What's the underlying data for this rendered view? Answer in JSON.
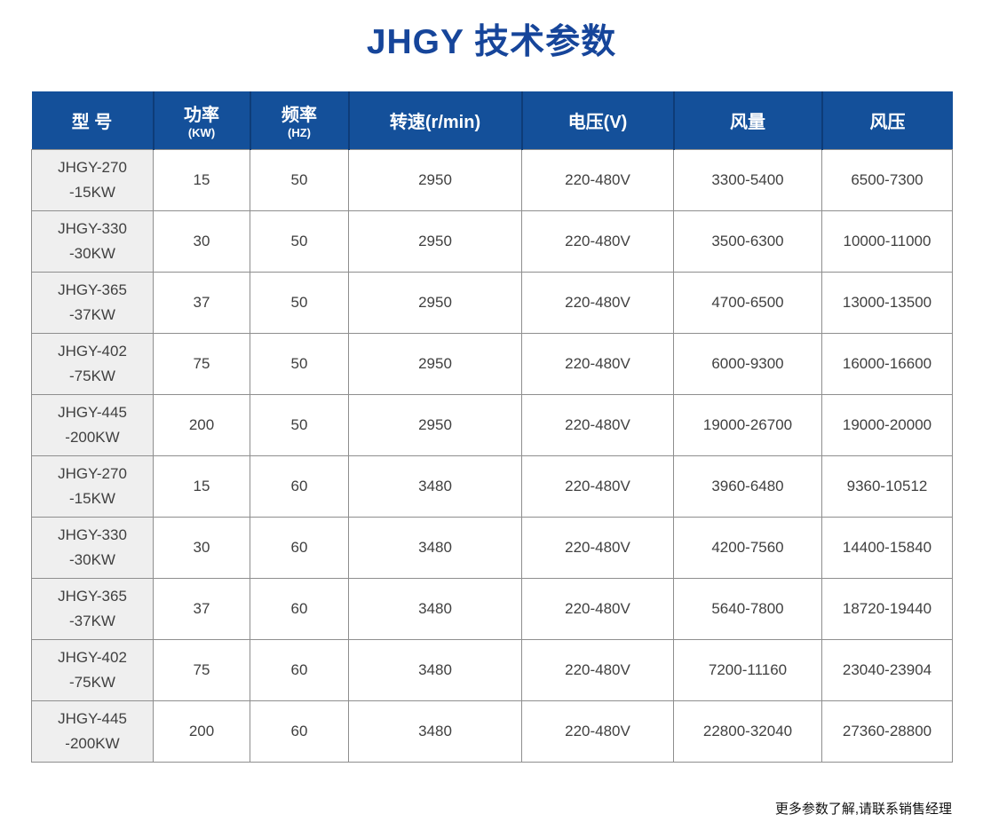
{
  "page": {
    "title": "JHGY 技术参数",
    "footer_note": "更多参数了解,请联系销售经理"
  },
  "colors": {
    "title_text": "#16459A",
    "header_bg": "#14509A",
    "header_divider": "#0E3C78",
    "model_cell_bg": "#EFEFEF",
    "grid_border": "#8E8E8E",
    "cell_text": "#404040"
  },
  "table": {
    "columns": [
      {
        "label": "型 号",
        "sub": ""
      },
      {
        "label": "功率",
        "sub": "(KW)"
      },
      {
        "label": "频率",
        "sub": "(HZ)"
      },
      {
        "label": "转速(r/min)",
        "sub": ""
      },
      {
        "label": "电压(V)",
        "sub": ""
      },
      {
        "label": "风量",
        "sub": ""
      },
      {
        "label": "风压",
        "sub": ""
      }
    ],
    "rows": [
      {
        "model_line1": "JHGY-270",
        "model_line2": "-15KW",
        "power_kw": "15",
        "frequency_hz": "50",
        "speed_rpm": "2950",
        "voltage": "220-480V",
        "air_volume": "3300-5400",
        "air_pressure": "6500-7300"
      },
      {
        "model_line1": "JHGY-330",
        "model_line2": "-30KW",
        "power_kw": "30",
        "frequency_hz": "50",
        "speed_rpm": "2950",
        "voltage": "220-480V",
        "air_volume": "3500-6300",
        "air_pressure": "10000-11000"
      },
      {
        "model_line1": "JHGY-365",
        "model_line2": "-37KW",
        "power_kw": "37",
        "frequency_hz": "50",
        "speed_rpm": "2950",
        "voltage": "220-480V",
        "air_volume": "4700-6500",
        "air_pressure": "13000-13500"
      },
      {
        "model_line1": "JHGY-402",
        "model_line2": "-75KW",
        "power_kw": "75",
        "frequency_hz": "50",
        "speed_rpm": "2950",
        "voltage": "220-480V",
        "air_volume": "6000-9300",
        "air_pressure": "16000-16600"
      },
      {
        "model_line1": "JHGY-445",
        "model_line2": "-200KW",
        "power_kw": "200",
        "frequency_hz": "50",
        "speed_rpm": "2950",
        "voltage": "220-480V",
        "air_volume": "19000-26700",
        "air_pressure": "19000-20000"
      },
      {
        "model_line1": "JHGY-270",
        "model_line2": "-15KW",
        "power_kw": "15",
        "frequency_hz": "60",
        "speed_rpm": "3480",
        "voltage": "220-480V",
        "air_volume": "3960-6480",
        "air_pressure": "9360-10512"
      },
      {
        "model_line1": "JHGY-330",
        "model_line2": "-30KW",
        "power_kw": "30",
        "frequency_hz": "60",
        "speed_rpm": "3480",
        "voltage": "220-480V",
        "air_volume": "4200-7560",
        "air_pressure": "14400-15840"
      },
      {
        "model_line1": "JHGY-365",
        "model_line2": "-37KW",
        "power_kw": "37",
        "frequency_hz": "60",
        "speed_rpm": "3480",
        "voltage": "220-480V",
        "air_volume": "5640-7800",
        "air_pressure": "18720-19440"
      },
      {
        "model_line1": "JHGY-402",
        "model_line2": "-75KW",
        "power_kw": "75",
        "frequency_hz": "60",
        "speed_rpm": "3480",
        "voltage": "220-480V",
        "air_volume": "7200-11160",
        "air_pressure": "23040-23904"
      },
      {
        "model_line1": "JHGY-445",
        "model_line2": "-200KW",
        "power_kw": "200",
        "frequency_hz": "60",
        "speed_rpm": "3480",
        "voltage": "220-480V",
        "air_volume": "22800-32040",
        "air_pressure": "27360-28800"
      }
    ]
  }
}
